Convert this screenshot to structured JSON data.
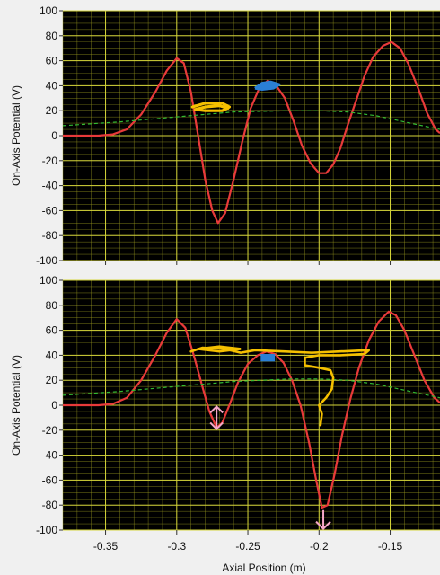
{
  "chart_data": [
    {
      "type": "line",
      "title": "",
      "xlabel": "",
      "ylabel": "On-Axis Potential (V)",
      "xlim": [
        -0.38,
        -0.115
      ],
      "ylim": [
        -100,
        100
      ],
      "yticks": [
        100,
        80,
        60,
        40,
        20,
        0,
        -20,
        -40,
        -60,
        -80,
        -100
      ],
      "xticks": [
        -0.35,
        -0.3,
        -0.25,
        -0.2,
        -0.15
      ],
      "grid": true,
      "colors": {
        "plot_bg": "#000000",
        "grid": "#9a9a1e",
        "potential": "#e83a3a",
        "envelope": "#33bb33",
        "marker_blue": "#2a7fd4",
        "highlight_yellow": "#f5c000"
      },
      "series": [
        {
          "name": "",
          "style": "solid",
          "color": "#e83a3a",
          "points": [
            [
              -0.38,
              0
            ],
            [
              -0.355,
              0
            ],
            [
              -0.345,
              1
            ],
            [
              -0.335,
              5
            ],
            [
              -0.325,
              17
            ],
            [
              -0.315,
              35
            ],
            [
              -0.307,
              52
            ],
            [
              -0.3,
              62
            ],
            [
              -0.295,
              58
            ],
            [
              -0.29,
              35
            ],
            [
              -0.285,
              0
            ],
            [
              -0.28,
              -35
            ],
            [
              -0.275,
              -60
            ],
            [
              -0.271,
              -70
            ],
            [
              -0.266,
              -62
            ],
            [
              -0.26,
              -35
            ],
            [
              -0.254,
              -5
            ],
            [
              -0.248,
              22
            ],
            [
              -0.242,
              38
            ],
            [
              -0.236,
              44
            ],
            [
              -0.23,
              40
            ],
            [
              -0.224,
              30
            ],
            [
              -0.218,
              12
            ],
            [
              -0.212,
              -8
            ],
            [
              -0.206,
              -22
            ],
            [
              -0.2,
              -30
            ],
            [
              -0.195,
              -30
            ],
            [
              -0.19,
              -23
            ],
            [
              -0.185,
              -10
            ],
            [
              -0.18,
              8
            ],
            [
              -0.174,
              28
            ],
            [
              -0.168,
              48
            ],
            [
              -0.162,
              63
            ],
            [
              -0.155,
              72
            ],
            [
              -0.149,
              75
            ],
            [
              -0.143,
              70
            ],
            [
              -0.137,
              57
            ],
            [
              -0.13,
              37
            ],
            [
              -0.124,
              18
            ],
            [
              -0.118,
              5
            ],
            [
              -0.115,
              2
            ]
          ]
        },
        {
          "name": "",
          "style": "dashed",
          "color": "#33bb33",
          "points": [
            [
              -0.38,
              8
            ],
            [
              -0.34,
              11
            ],
            [
              -0.3,
              15
            ],
            [
              -0.26,
              19
            ],
            [
              -0.22,
              20
            ],
            [
              -0.2,
              20
            ],
            [
              -0.18,
              19
            ],
            [
              -0.16,
              16
            ],
            [
              -0.14,
              11
            ],
            [
              -0.115,
              5
            ]
          ]
        }
      ]
    },
    {
      "type": "line",
      "title": "",
      "xlabel": "Axial Position (m)",
      "ylabel": "On-Axis Potential (V)",
      "xlim": [
        -0.38,
        -0.115
      ],
      "ylim": [
        -100,
        100
      ],
      "yticks": [
        100,
        80,
        60,
        40,
        20,
        0,
        -20,
        -40,
        -60,
        -80,
        -100
      ],
      "xticks": [
        -0.35,
        -0.3,
        -0.25,
        -0.2,
        -0.15
      ],
      "grid": true,
      "colors": {
        "plot_bg": "#000000",
        "grid": "#9a9a1e",
        "potential": "#e83a3a",
        "envelope": "#33bb33",
        "marker_blue": "#2a7fd4",
        "highlight_yellow": "#f5c000",
        "arrows": "#f4a6c8"
      },
      "series": [
        {
          "name": "",
          "style": "solid",
          "color": "#e83a3a",
          "points": [
            [
              -0.38,
              0
            ],
            [
              -0.355,
              0
            ],
            [
              -0.345,
              1
            ],
            [
              -0.335,
              6
            ],
            [
              -0.325,
              20
            ],
            [
              -0.315,
              40
            ],
            [
              -0.307,
              58
            ],
            [
              -0.3,
              69
            ],
            [
              -0.294,
              62
            ],
            [
              -0.288,
              40
            ],
            [
              -0.282,
              15
            ],
            [
              -0.277,
              -5
            ],
            [
              -0.272,
              -18
            ],
            [
              -0.268,
              -14
            ],
            [
              -0.263,
              0
            ],
            [
              -0.257,
              18
            ],
            [
              -0.25,
              33
            ],
            [
              -0.243,
              40
            ],
            [
              -0.237,
              43
            ],
            [
              -0.231,
              41
            ],
            [
              -0.225,
              34
            ],
            [
              -0.219,
              20
            ],
            [
              -0.213,
              0
            ],
            [
              -0.207,
              -30
            ],
            [
              -0.202,
              -60
            ],
            [
              -0.198,
              -82
            ],
            [
              -0.194,
              -80
            ],
            [
              -0.189,
              -55
            ],
            [
              -0.184,
              -25
            ],
            [
              -0.178,
              5
            ],
            [
              -0.172,
              30
            ],
            [
              -0.165,
              52
            ],
            [
              -0.158,
              67
            ],
            [
              -0.151,
              75
            ],
            [
              -0.146,
              72
            ],
            [
              -0.14,
              60
            ],
            [
              -0.133,
              40
            ],
            [
              -0.126,
              20
            ],
            [
              -0.119,
              6
            ],
            [
              -0.115,
              2
            ]
          ]
        },
        {
          "name": "",
          "style": "dashed",
          "color": "#33bb33",
          "points": [
            [
              -0.38,
              8
            ],
            [
              -0.34,
              11
            ],
            [
              -0.3,
              15
            ],
            [
              -0.26,
              19
            ],
            [
              -0.22,
              21
            ],
            [
              -0.2,
              21
            ],
            [
              -0.18,
              20
            ],
            [
              -0.16,
              17
            ],
            [
              -0.14,
              12
            ],
            [
              -0.115,
              6
            ]
          ]
        }
      ]
    }
  ]
}
